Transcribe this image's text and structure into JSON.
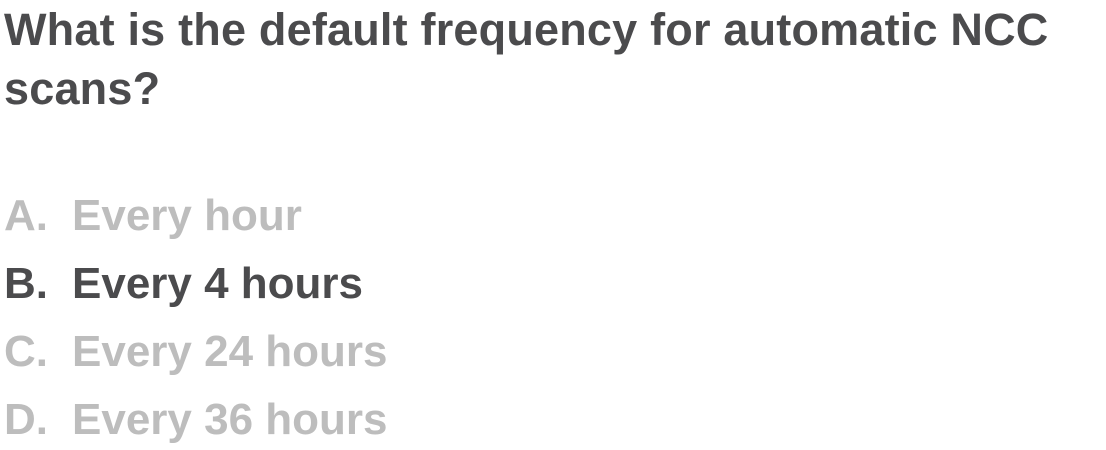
{
  "question": {
    "text": "What is the default frequency for automatic NCC scans?"
  },
  "colors": {
    "primary_text": "#4b4b4d",
    "dimmed_text": "#bdbdbd",
    "background": "#ffffff"
  },
  "options": [
    {
      "letter": "A.",
      "text": "Every hour",
      "state": "dimmed"
    },
    {
      "letter": "B.",
      "text": "Every 4 hours",
      "state": "highlighted"
    },
    {
      "letter": "C.",
      "text": "Every 24 hours",
      "state": "dimmed"
    },
    {
      "letter": "D.",
      "text": "Every 36 hours",
      "state": "dimmed"
    }
  ]
}
